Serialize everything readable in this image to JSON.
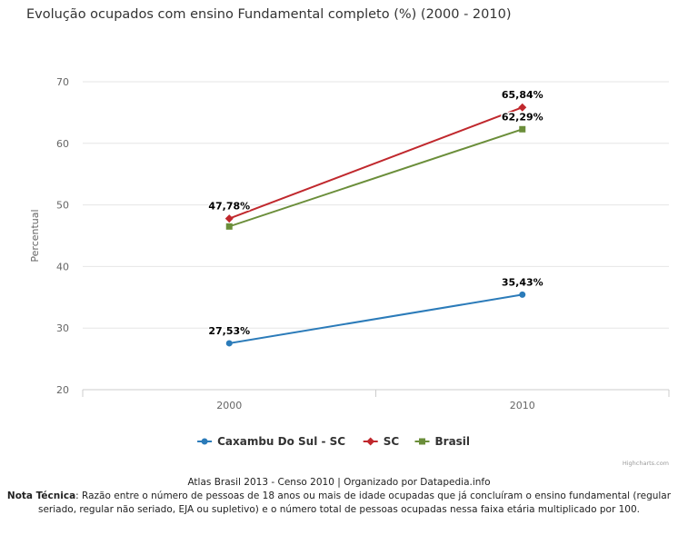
{
  "chart_data": {
    "type": "line",
    "title": "Evolução ocupados com ensino Fundamental completo (%) (2000 - 2010)",
    "ylabel": "Percentual",
    "xlabel": "",
    "categories": [
      "2000",
      "2010"
    ],
    "ylim": [
      20,
      70
    ],
    "yticks": [
      20,
      30,
      40,
      50,
      60,
      70
    ],
    "grid": true,
    "legend_position": "bottom-center",
    "series": [
      {
        "name": "Caxambu Do Sul - SC",
        "values": [
          27.53,
          35.43
        ],
        "labels": [
          "27,53%",
          "35,43%"
        ],
        "color": "#2b7bb9",
        "marker": "circle"
      },
      {
        "name": "SC",
        "values": [
          47.78,
          65.84
        ],
        "labels": [
          "47,78%",
          "65,84%"
        ],
        "color": "#c0282d",
        "marker": "diamond"
      },
      {
        "name": "Brasil",
        "values": [
          46.5,
          62.29
        ],
        "labels": [
          "",
          "62,29%"
        ],
        "color": "#6b8e3a",
        "marker": "square"
      }
    ]
  },
  "credits": "Highcharts.com",
  "caption": {
    "source": "Atlas Brasil 2013 - Censo 2010 | Organizado por Datapedia.info",
    "note_label": "Nota Técnica",
    "note_text": ": Razão entre o número de pessoas de 18 anos ou mais de idade ocupadas que já concluíram o ensino fundamental (regular seriado, regular não seriado, EJA ou supletivo) e o número total de pessoas ocupadas nessa faixa etária multiplicado por 100."
  }
}
